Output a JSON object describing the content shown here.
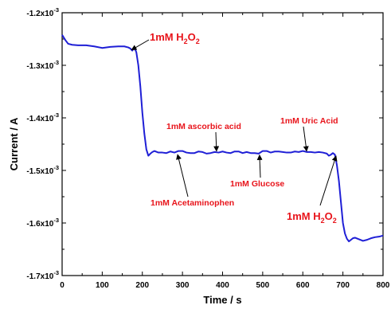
{
  "chart_data": {
    "type": "line",
    "xlabel": "Time / s",
    "ylabel": "Current / A",
    "xlim": [
      0,
      800
    ],
    "ylim": [
      -0.0017,
      -0.0012
    ],
    "x_ticks": [
      0,
      100,
      200,
      300,
      400,
      500,
      600,
      700,
      800
    ],
    "x_tick_labels": [
      "0",
      "100",
      "200",
      "300",
      "400",
      "500",
      "600",
      "700",
      "800"
    ],
    "y_ticks": [
      -0.0012,
      -0.0013,
      -0.0014,
      -0.0015,
      -0.0016,
      -0.0017
    ],
    "y_tick_labels": [
      {
        "mantissa": "-1.2x10",
        "exp": "-3"
      },
      {
        "mantissa": "-1.3x10",
        "exp": "-3"
      },
      {
        "mantissa": "-1.4x10",
        "exp": "-3"
      },
      {
        "mantissa": "-1.5x10",
        "exp": "-3"
      },
      {
        "mantissa": "-1.6x10",
        "exp": "-3"
      },
      {
        "mantissa": "-1.7x10",
        "exp": "-3"
      }
    ],
    "series_color": "#1f1fd6",
    "annotation_color": "#e8141b",
    "x": [
      0,
      8,
      15,
      25,
      40,
      60,
      80,
      100,
      120,
      140,
      155,
      165,
      170,
      175,
      180,
      185,
      190,
      195,
      200,
      205,
      210,
      215,
      220,
      225,
      230,
      240,
      250,
      260,
      270,
      280,
      290,
      300,
      310,
      320,
      330,
      340,
      350,
      360,
      370,
      380,
      390,
      400,
      410,
      420,
      430,
      440,
      450,
      460,
      470,
      480,
      490,
      500,
      510,
      520,
      530,
      540,
      550,
      560,
      570,
      580,
      590,
      600,
      610,
      620,
      630,
      640,
      650,
      660,
      665,
      670,
      675,
      680,
      685,
      690,
      695,
      700,
      705,
      710,
      715,
      720,
      725,
      730,
      740,
      750,
      760,
      770,
      780,
      790,
      800
    ],
    "y": [
      -0.001242,
      -0.001252,
      -0.001259,
      -0.001261,
      -0.001262,
      -0.001262,
      -0.001264,
      -0.001267,
      -0.001265,
      -0.001264,
      -0.001264,
      -0.001266,
      -0.001268,
      -0.001272,
      -0.001266,
      -0.001275,
      -0.0013,
      -0.00134,
      -0.00139,
      -0.00143,
      -0.00146,
      -0.001472,
      -0.001468,
      -0.001465,
      -0.001463,
      -0.001466,
      -0.001466,
      -0.001467,
      -0.001464,
      -0.001466,
      -0.001463,
      -0.001463,
      -0.001466,
      -0.001467,
      -0.001467,
      -0.001464,
      -0.001465,
      -0.001468,
      -0.001467,
      -0.001465,
      -0.001466,
      -0.001464,
      -0.001466,
      -0.001467,
      -0.001464,
      -0.001464,
      -0.001467,
      -0.001465,
      -0.001467,
      -0.001467,
      -0.001468,
      -0.001463,
      -0.001463,
      -0.001466,
      -0.001464,
      -0.001464,
      -0.001465,
      -0.001466,
      -0.001466,
      -0.001464,
      -0.001465,
      -0.001463,
      -0.001465,
      -0.001465,
      -0.001466,
      -0.001465,
      -0.001466,
      -0.001468,
      -0.001472,
      -0.00147,
      -0.001467,
      -0.00147,
      -0.00149,
      -0.00152,
      -0.00156,
      -0.0016,
      -0.00162,
      -0.00163,
      -0.001635,
      -0.001632,
      -0.001629,
      -0.001628,
      -0.001631,
      -0.001634,
      -0.001632,
      -0.001629,
      -0.001627,
      -0.001626,
      -0.001624
    ],
    "annotations": [
      {
        "id": "h2o2-1",
        "base": "1mM H",
        "sub1": "2",
        "mid": "O",
        "sub2": "2",
        "size": "big",
        "target": [
          170,
          -0.001272
        ]
      },
      {
        "id": "ascorbic",
        "text": "1mM ascorbic acid",
        "size": "small",
        "target": [
          385,
          -0.001466
        ]
      },
      {
        "id": "uric",
        "text": "1mM Uric Acid",
        "size": "small",
        "target": [
          610,
          -0.001466
        ]
      },
      {
        "id": "glucose",
        "text": "1mM Glucose",
        "size": "small",
        "target": [
          492,
          -0.001468
        ]
      },
      {
        "id": "acetaminophen",
        "text": "1mM Acetaminophen",
        "size": "small",
        "target": [
          287,
          -0.001467
        ]
      },
      {
        "id": "h2o2-2",
        "base": "1mM H",
        "sub1": "2",
        "mid": "O",
        "sub2": "2",
        "size": "big",
        "target": [
          684,
          -0.00147
        ]
      }
    ]
  }
}
